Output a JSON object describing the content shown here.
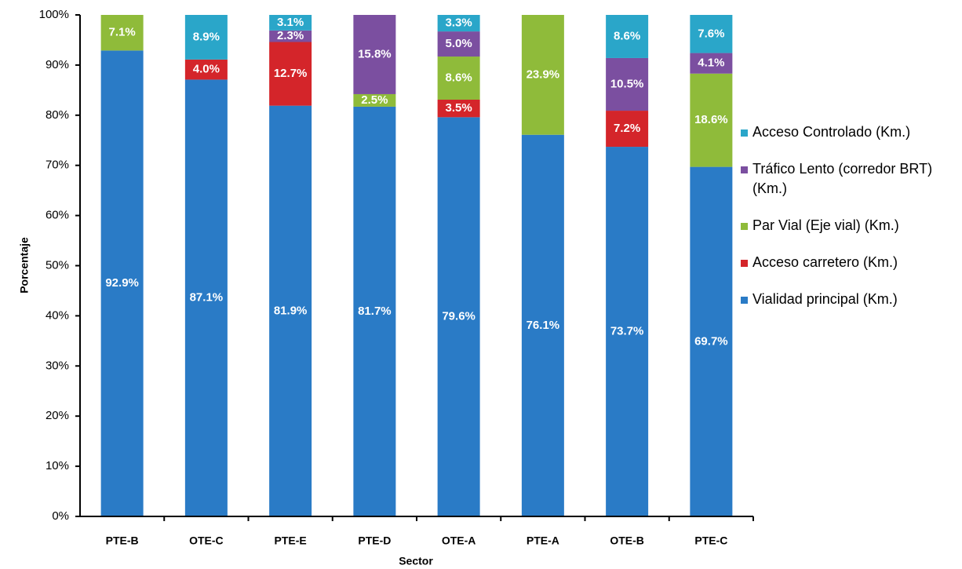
{
  "chart_data": {
    "type": "stacked_bar",
    "xlabel": "Sector",
    "ylabel": "Porcentaje",
    "categories": [
      "PTE-B",
      "OTE-C",
      "PTE-E",
      "PTE-D",
      "OTE-A",
      "PTE-A",
      "OTE-B",
      "PTE-C"
    ],
    "series": [
      {
        "name": "Vialidad principal (Km.)",
        "color": "#2a7bc6",
        "values": [
          92.9,
          87.1,
          81.9,
          81.7,
          79.6,
          76.1,
          73.7,
          69.7
        ],
        "value_labels": [
          "92.9%",
          "87.1%",
          "81.9%",
          "81.7%",
          "79.6%",
          "76.1%",
          "73.7%",
          "69.7%"
        ]
      },
      {
        "name": "Acceso carretero (Km.)",
        "color": "#d4252a",
        "values": [
          0,
          4.0,
          12.7,
          0,
          3.5,
          0,
          7.2,
          0
        ],
        "value_labels": [
          null,
          "4.0%",
          "12.7%",
          null,
          "3.5%",
          null,
          "7.2%",
          null
        ]
      },
      {
        "name": "Par Vial (Eje vial) (Km.)",
        "color": "#8fbb3a",
        "values": [
          7.1,
          0,
          0,
          2.5,
          8.6,
          23.9,
          0,
          18.6
        ],
        "value_labels": [
          "7.1%",
          null,
          null,
          "2.5%",
          "8.6%",
          "23.9%",
          null,
          "18.6%"
        ]
      },
      {
        "name": "Tráfico Lento (corredor BRT) (Km.)",
        "color": "#7b4fa0",
        "values": [
          0,
          0,
          2.3,
          15.8,
          5.0,
          0,
          10.5,
          4.1
        ],
        "value_labels": [
          null,
          null,
          "2.3%",
          "15.8%",
          "5.0%",
          null,
          "10.5%",
          "4.1%"
        ]
      },
      {
        "name": "Acceso Controlado (Km.)",
        "color": "#2aa6c9",
        "values": [
          0,
          8.9,
          3.1,
          0,
          3.3,
          0,
          8.6,
          7.6
        ],
        "value_labels": [
          null,
          "8.9%",
          "3.1%",
          null,
          "3.3%",
          null,
          "8.6%",
          "7.6%"
        ]
      }
    ],
    "ylim": [
      0,
      100
    ],
    "yticks": [
      {
        "value": 0,
        "label": "0%"
      },
      {
        "value": 10,
        "label": "10%"
      },
      {
        "value": 20,
        "label": "20%"
      },
      {
        "value": 30,
        "label": "30%"
      },
      {
        "value": 40,
        "label": "40%"
      },
      {
        "value": 50,
        "label": "50%"
      },
      {
        "value": 60,
        "label": "60%"
      },
      {
        "value": 70,
        "label": "70%"
      },
      {
        "value": 80,
        "label": "80%"
      },
      {
        "value": 90,
        "label": "90%"
      },
      {
        "value": 100,
        "label": "100%"
      }
    ],
    "legend": "right"
  }
}
